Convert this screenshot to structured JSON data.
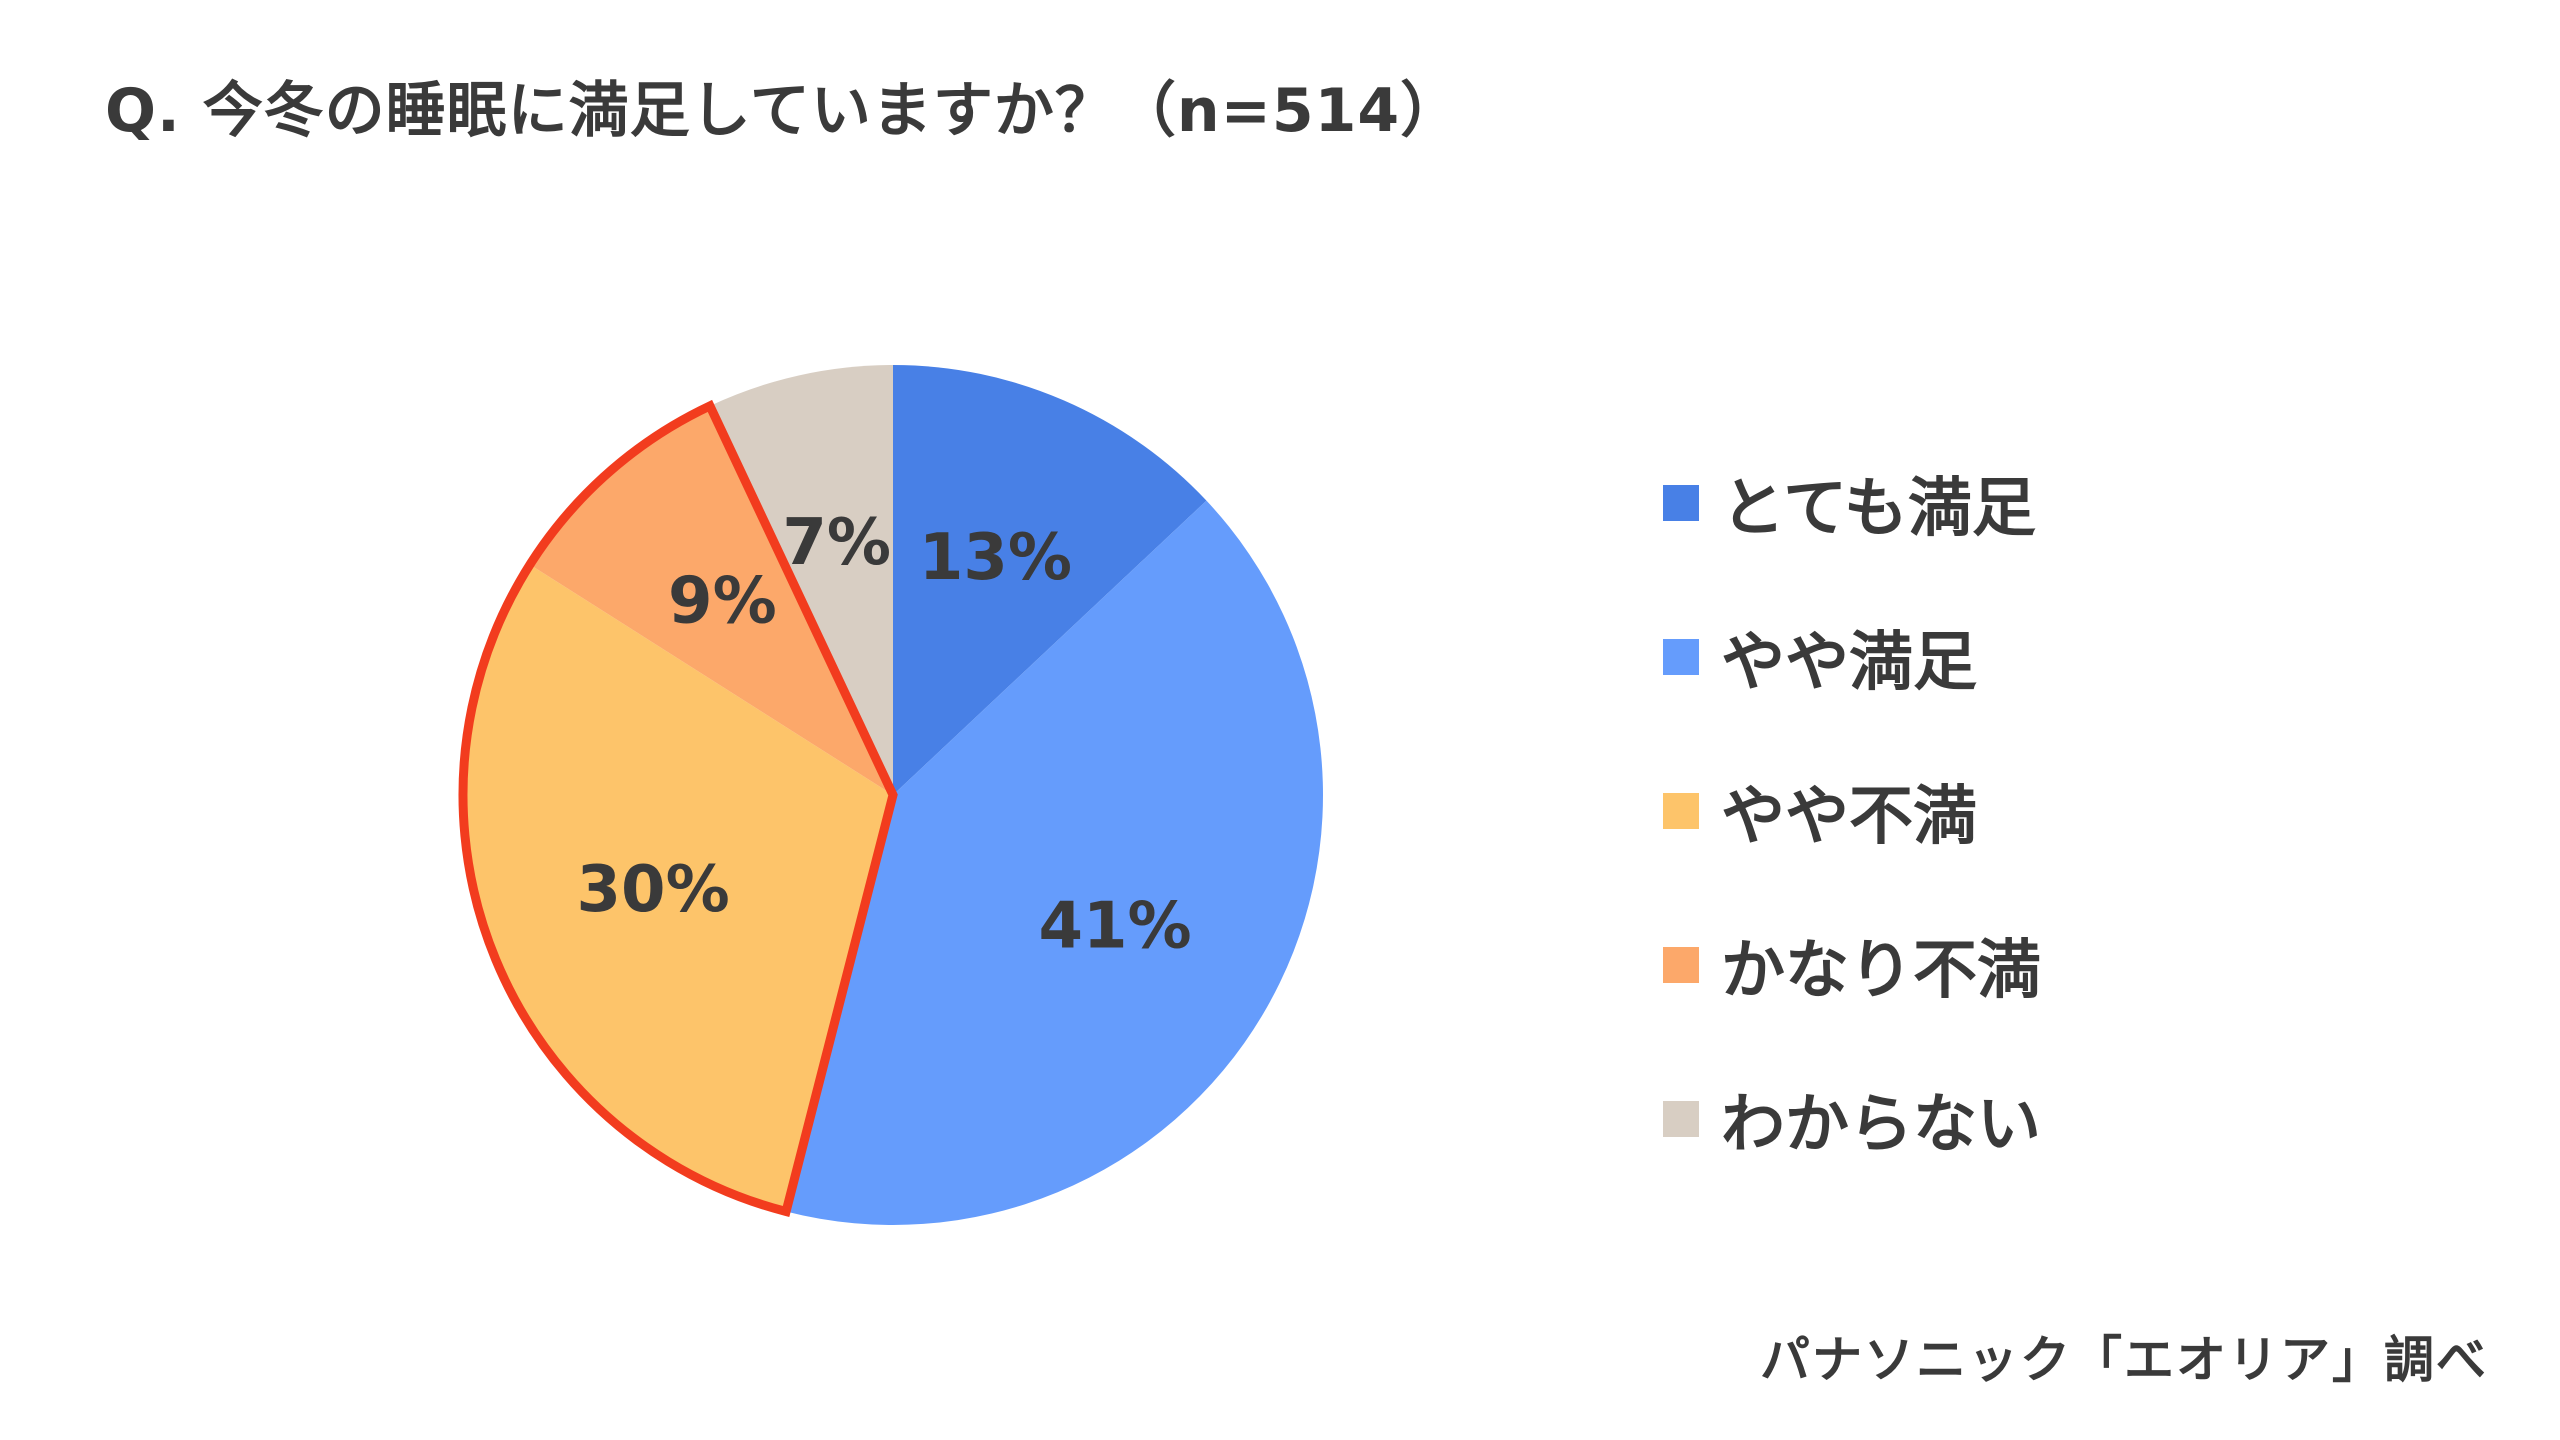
{
  "chart_data": {
    "type": "pie",
    "title": "Q. 今冬の睡眠に満足していますか？（n=514）",
    "start_angle": "12 o'clock, clockwise",
    "slices": [
      {
        "label": "とても満足",
        "value": 13,
        "display": "13%",
        "color": "#4880e6"
      },
      {
        "label": "やや満足",
        "value": 41,
        "display": "41%",
        "color": "#659cfc"
      },
      {
        "label": "やや不満",
        "value": 30,
        "display": "30%",
        "color": "#fdc46a"
      },
      {
        "label": "かなり不満",
        "value": 9,
        "display": "9%",
        "color": "#fca86a"
      },
      {
        "label": "わからない",
        "value": 7,
        "display": "7%",
        "color": "#d8cec3"
      }
    ],
    "highlight": {
      "slices": [
        "やや不満",
        "かなり不満"
      ],
      "outline_color": "#f23c1e"
    },
    "legend_position": "right"
  },
  "source": "パナソニック「エオリア」調べ"
}
